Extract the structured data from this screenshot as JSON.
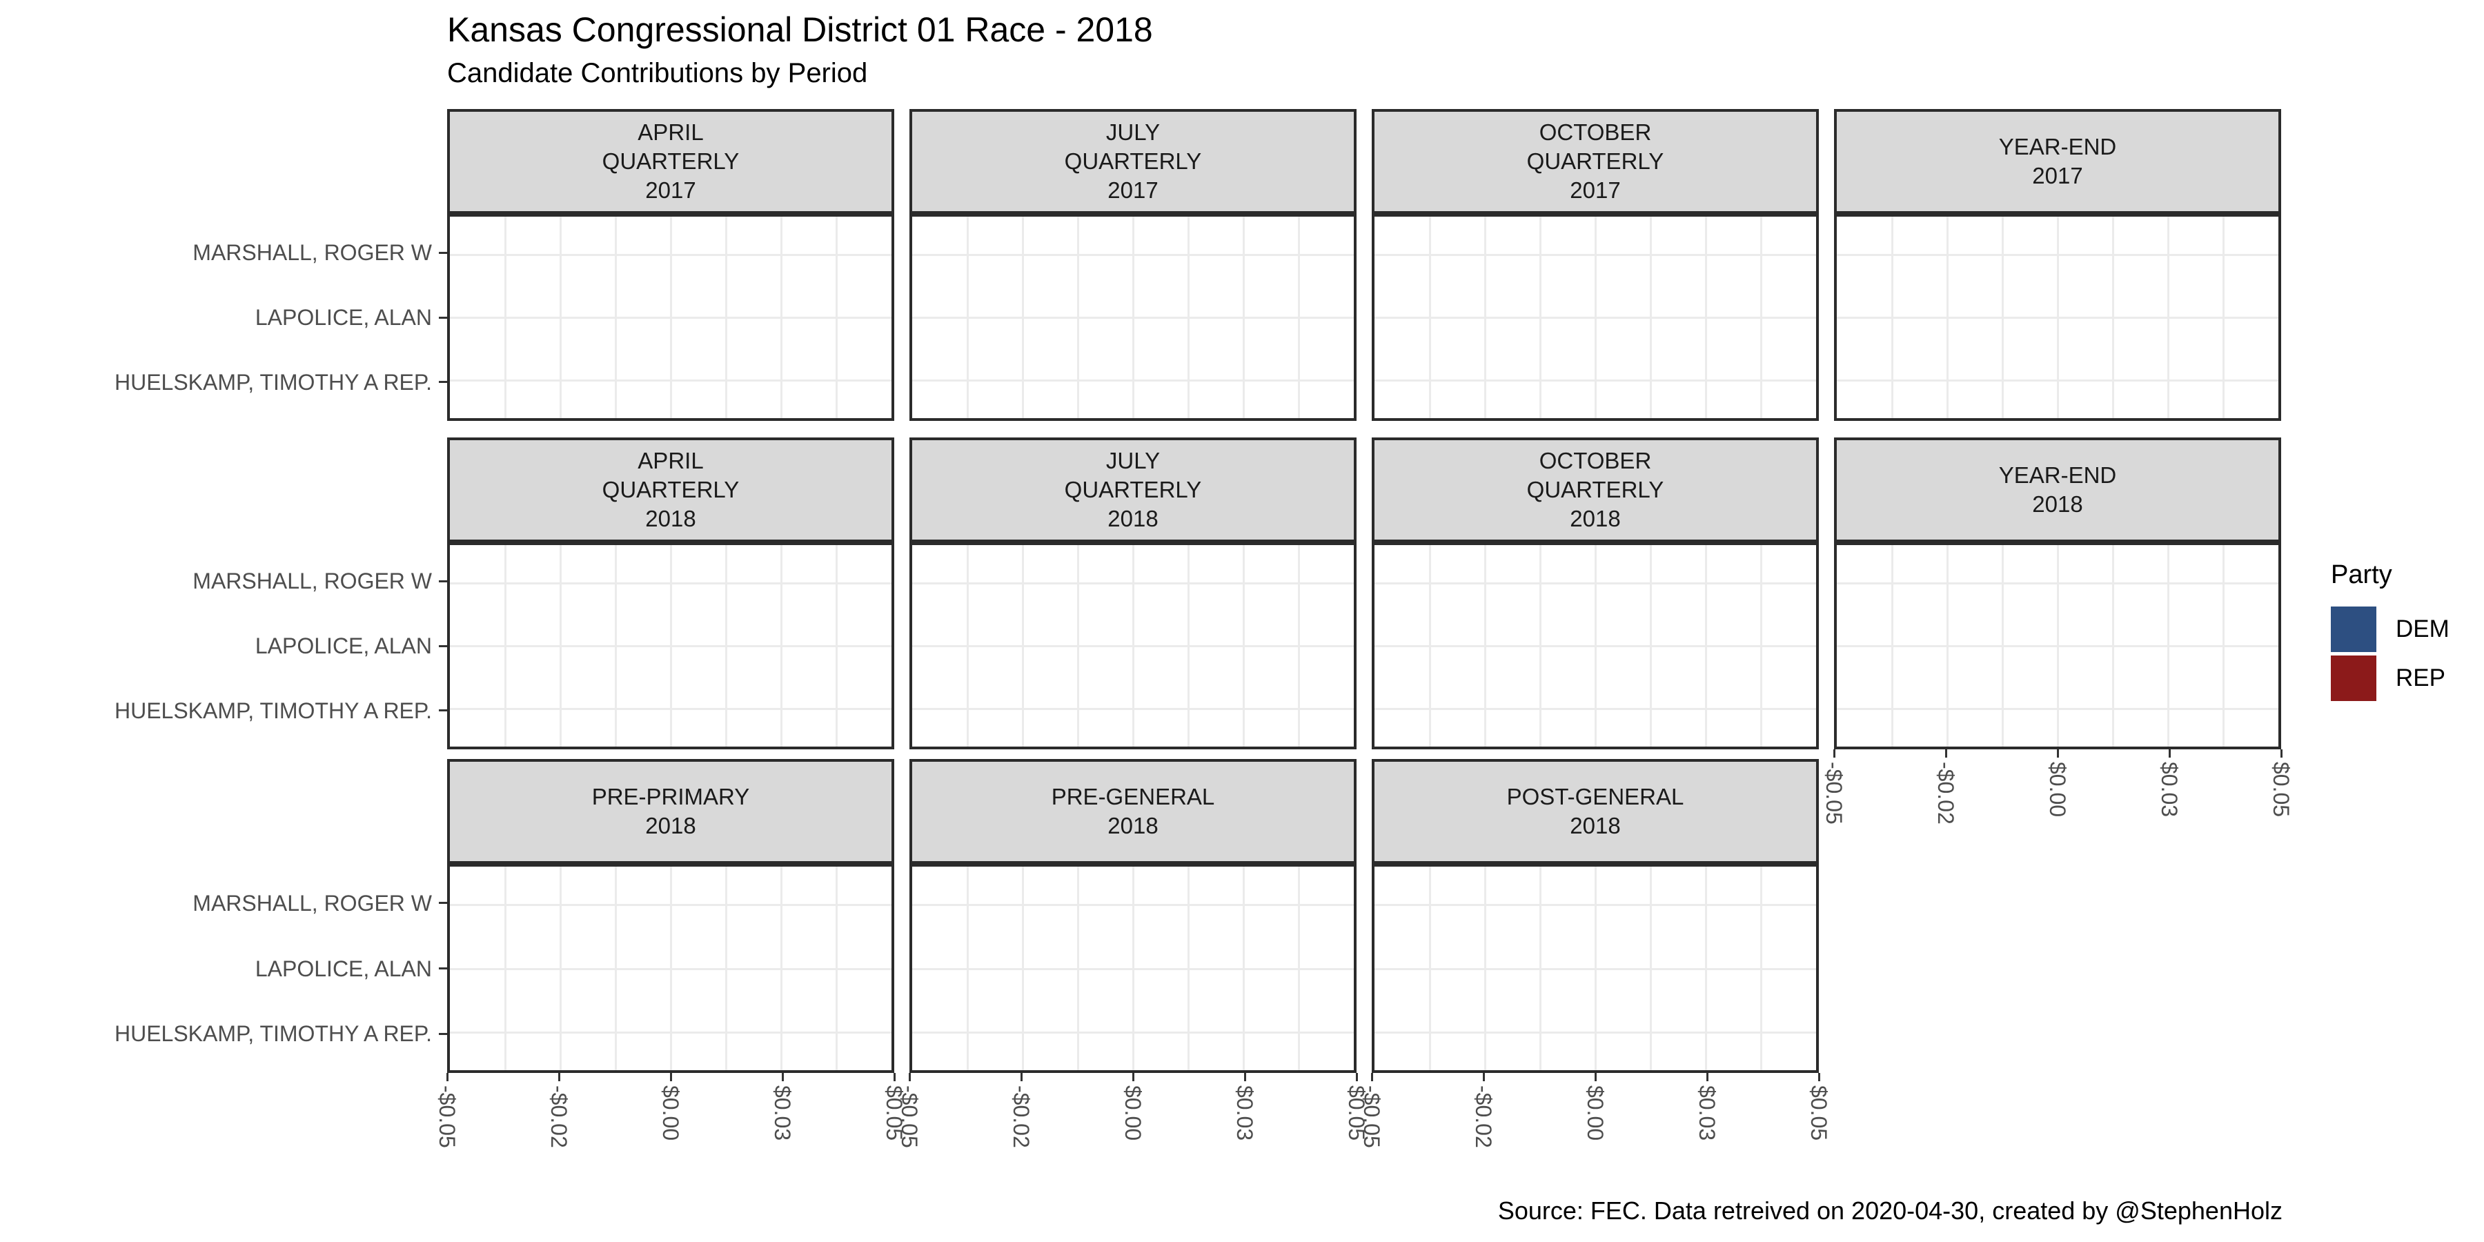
{
  "title": "Kansas Congressional District 01 Race - 2018",
  "subtitle": "Candidate Contributions by Period",
  "caption": "Source: FEC. Data retreived on 2020-04-30, created by @StephenHolz",
  "candidates": [
    "MARSHALL, ROGER W",
    "LAPOLICE, ALAN",
    "HUELSKAMP, TIMOTHY A REP."
  ],
  "x_axis": {
    "tick_labels": [
      "-$0.05",
      "-$0.02",
      "$0.00",
      "$0.03",
      "$0.05"
    ],
    "tick_values": [
      -0.05,
      -0.025,
      0,
      0.025,
      0.05
    ]
  },
  "facets": [
    {
      "row": 0,
      "col": 0,
      "lines": [
        "APRIL",
        "QUARTERLY",
        "2017"
      ],
      "x_axis": false
    },
    {
      "row": 0,
      "col": 1,
      "lines": [
        "JULY",
        "QUARTERLY",
        "2017"
      ],
      "x_axis": false
    },
    {
      "row": 0,
      "col": 2,
      "lines": [
        "OCTOBER",
        "QUARTERLY",
        "2017"
      ],
      "x_axis": false
    },
    {
      "row": 0,
      "col": 3,
      "lines": [
        "YEAR-END",
        "2017"
      ],
      "x_axis": false
    },
    {
      "row": 1,
      "col": 0,
      "lines": [
        "APRIL",
        "QUARTERLY",
        "2018"
      ],
      "x_axis": false
    },
    {
      "row": 1,
      "col": 1,
      "lines": [
        "JULY",
        "QUARTERLY",
        "2018"
      ],
      "x_axis": false
    },
    {
      "row": 1,
      "col": 2,
      "lines": [
        "OCTOBER",
        "QUARTERLY",
        "2018"
      ],
      "x_axis": false
    },
    {
      "row": 1,
      "col": 3,
      "lines": [
        "YEAR-END",
        "2018"
      ],
      "x_axis": true
    },
    {
      "row": 2,
      "col": 0,
      "lines": [
        "PRE-PRIMARY",
        "2018"
      ],
      "x_axis": true
    },
    {
      "row": 2,
      "col": 1,
      "lines": [
        "PRE-GENERAL",
        "2018"
      ],
      "x_axis": true
    },
    {
      "row": 2,
      "col": 2,
      "lines": [
        "POST-GENERAL",
        "2018"
      ],
      "x_axis": true
    }
  ],
  "legend": {
    "title": "Party",
    "entries": [
      {
        "label": "DEM",
        "color": "#2d4f81"
      },
      {
        "label": "REP",
        "color": "#8c1a1a"
      }
    ]
  },
  "colors": {
    "strip_fill": "#d9d9d9",
    "panel_border": "#2b2b2b",
    "gridline": "#ebebeb",
    "axis_text": "#4d4d4d",
    "dem": "#2d4f81",
    "rep": "#8c1a1a"
  },
  "chart_data": {
    "type": "bar",
    "orientation": "horizontal",
    "title": "Kansas Congressional District 01 Race - 2018",
    "subtitle": "Candidate Contributions by Period",
    "caption": "Source: FEC. Data retreived on 2020-04-30, created by @StephenHolz",
    "facet_variable": "Period",
    "facets": [
      "APRIL QUARTERLY 2017",
      "JULY QUARTERLY 2017",
      "OCTOBER QUARTERLY 2017",
      "YEAR-END 2017",
      "APRIL QUARTERLY 2018",
      "JULY QUARTERLY 2018",
      "OCTOBER QUARTERLY 2018",
      "YEAR-END 2018",
      "PRE-PRIMARY 2018",
      "PRE-GENERAL 2018",
      "POST-GENERAL 2018"
    ],
    "categories": [
      "MARSHALL, ROGER W",
      "LAPOLICE, ALAN",
      "HUELSKAMP, TIMOTHY A REP."
    ],
    "series": [
      {
        "name": "DEM",
        "color": "#2d4f81"
      },
      {
        "name": "REP",
        "color": "#8c1a1a"
      }
    ],
    "values": {
      "APRIL QUARTERLY 2017": [
        0,
        0,
        0
      ],
      "JULY QUARTERLY 2017": [
        0,
        0,
        0
      ],
      "OCTOBER QUARTERLY 2017": [
        0,
        0,
        0
      ],
      "YEAR-END 2017": [
        0,
        0,
        0
      ],
      "APRIL QUARTERLY 2018": [
        0,
        0,
        0
      ],
      "JULY QUARTERLY 2018": [
        0,
        0,
        0
      ],
      "OCTOBER QUARTERLY 2018": [
        0,
        0,
        0
      ],
      "YEAR-END 2018": [
        0,
        0,
        0
      ],
      "PRE-PRIMARY 2018": [
        0,
        0,
        0
      ],
      "POST-GENERAL 2018": [
        0,
        0,
        0
      ],
      "PRE-GENERAL 2018": [
        0,
        0,
        0
      ]
    },
    "note": "All panels are empty - no bars are rendered for any candidate in any period",
    "xlim": [
      -0.05,
      0.05
    ],
    "x_tick_labels": [
      "-$0.05",
      "-$0.02",
      "$0.00",
      "$0.03",
      "$0.05"
    ],
    "grid": true,
    "legend_position": "right"
  }
}
